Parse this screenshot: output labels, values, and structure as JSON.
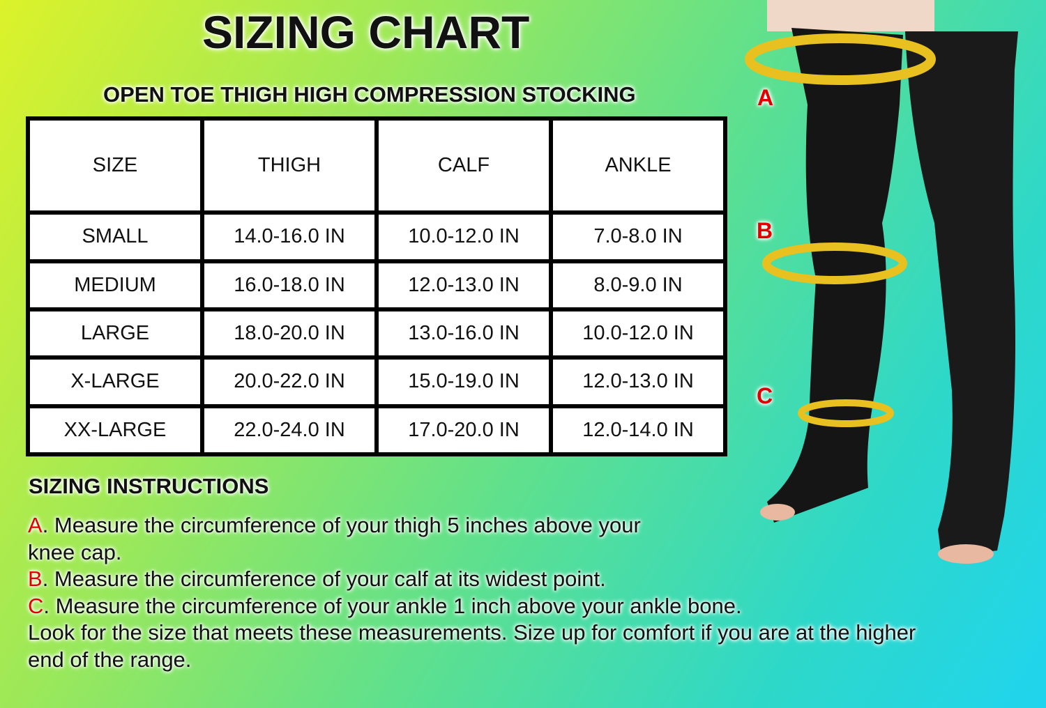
{
  "title": "SIZING CHART",
  "subtitle": "OPEN TOE THIGH HIGH COMPRESSION STOCKING",
  "table": {
    "headers": [
      "SIZE",
      "THIGH",
      "CALF",
      "ANKLE"
    ],
    "rows": [
      [
        "SMALL",
        "14.0-16.0 IN",
        "10.0-12.0 IN",
        "7.0-8.0 IN"
      ],
      [
        "MEDIUM",
        "16.0-18.0 IN",
        "12.0-13.0 IN",
        "8.0-9.0 IN"
      ],
      [
        "LARGE",
        "18.0-20.0 IN",
        "13.0-16.0 IN",
        "10.0-12.0 IN"
      ],
      [
        "X-LARGE",
        "20.0-22.0 IN",
        "15.0-19.0 IN",
        "12.0-13.0 IN"
      ],
      [
        "XX-LARGE",
        "22.0-24.0 IN",
        "17.0-20.0 IN",
        "12.0-14.0 IN"
      ]
    ]
  },
  "instructions": {
    "heading": "SIZING INSTRUCTIONS",
    "a_letter": "A",
    "a_text": ". Measure the circumference of your thigh 5 inches above your knee cap.",
    "b_letter": "B",
    "b_text": ". Measure the circumference of your calf at its widest point.",
    "c_letter": "C",
    "c_text": ". Measure the circumference of your ankle 1 inch above your ankle bone.",
    "note": "Look for the size that meets these measurements. Size up for comfort if you are at the higher end of the range."
  },
  "markers": [
    "A",
    "B",
    "C"
  ],
  "colors": {
    "marker_red": "#e00000",
    "stocking": "#151515",
    "tape": "#e8c020"
  }
}
